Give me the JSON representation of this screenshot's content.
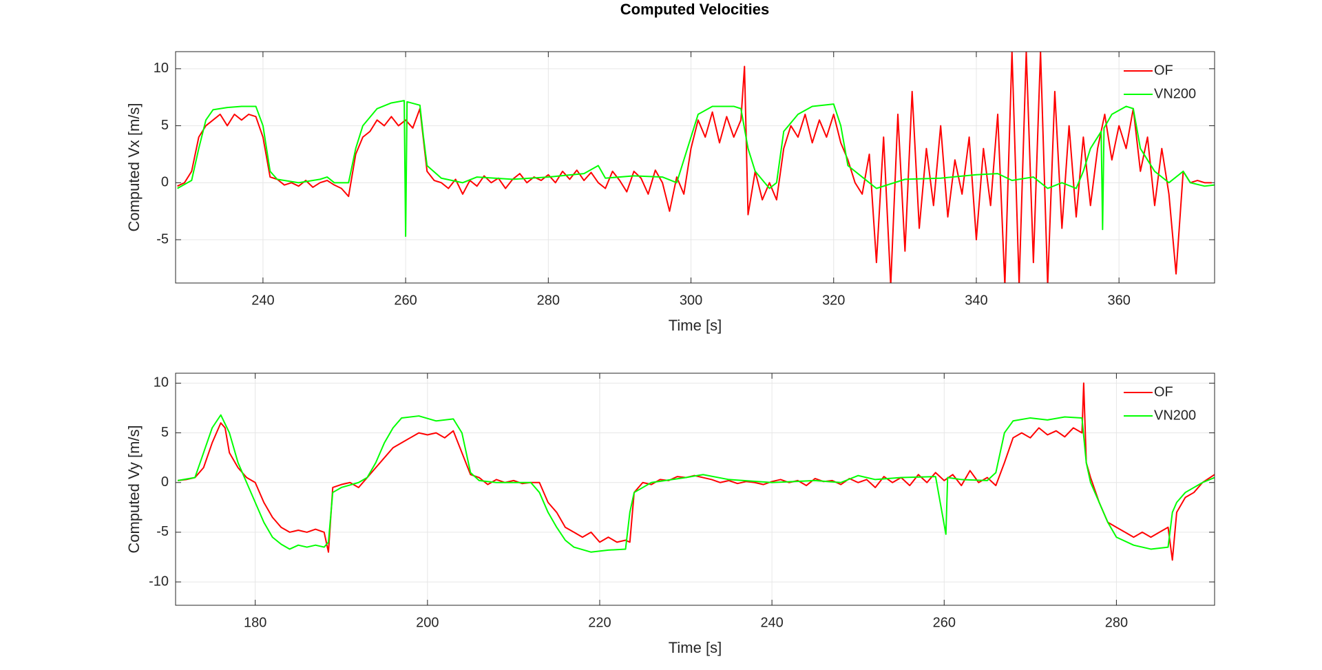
{
  "chart_data": [
    {
      "type": "line",
      "title": "Computed Velocities",
      "x_label": "Time [s]",
      "y_label": "Computed Vx [m/s]",
      "xlim": [
        227.75,
        373.4
      ],
      "ylim": [
        -8.8,
        11.5
      ],
      "xticks": [
        240,
        260,
        280,
        300,
        320,
        340,
        360
      ],
      "yticks": [
        -5,
        0,
        5,
        10
      ],
      "grid": true,
      "legend": "northeast",
      "series": [
        {
          "name": "OF",
          "color": "#ff0000",
          "x": [
            228,
            229,
            230,
            231,
            232,
            233,
            234,
            235,
            236,
            237,
            238,
            239,
            240,
            241,
            242,
            243,
            244,
            245,
            246,
            247,
            248,
            249,
            250,
            251,
            252,
            253,
            254,
            255,
            256,
            257,
            258,
            259,
            260,
            261,
            262,
            263,
            264,
            265,
            266,
            267,
            268,
            269,
            270,
            271,
            272,
            273,
            274,
            275,
            276,
            277,
            278,
            279,
            280,
            281,
            282,
            283,
            284,
            285,
            286,
            287,
            288,
            289,
            290,
            291,
            292,
            293,
            294,
            295,
            296,
            297,
            298,
            299,
            300,
            301,
            302,
            303,
            304,
            305,
            306,
            307,
            307.5,
            308,
            309,
            310,
            311,
            312,
            313,
            314,
            315,
            316,
            317,
            318,
            319,
            320,
            321,
            322,
            323,
            324,
            325,
            326,
            327,
            328,
            329,
            330,
            331,
            332,
            333,
            334,
            335,
            336,
            337,
            338,
            339,
            340,
            341,
            342,
            343,
            344,
            345,
            346,
            347,
            348,
            349,
            350,
            351,
            352,
            353,
            354,
            355,
            356,
            357,
            358,
            359,
            360,
            361,
            362,
            363,
            364,
            365,
            366,
            367,
            368,
            369,
            370,
            371,
            372,
            373
          ],
          "values": [
            -0.3,
            0,
            1,
            4,
            5,
            5.5,
            6,
            5,
            6,
            5.5,
            6,
            5.8,
            4,
            0.5,
            0.3,
            -0.2,
            0,
            -0.3,
            0.2,
            -0.4,
            0,
            0.2,
            -0.2,
            -0.5,
            -1.2,
            2.5,
            4,
            4.5,
            5.5,
            5,
            5.8,
            5,
            5.5,
            4.8,
            6.5,
            1,
            0.2,
            0,
            -0.5,
            0.3,
            -1,
            0.2,
            -0.3,
            0.6,
            0,
            0.4,
            -0.5,
            0.3,
            0.8,
            0,
            0.5,
            0.2,
            0.7,
            0,
            1,
            0.3,
            1.1,
            0.2,
            0.9,
            0,
            -0.5,
            1,
            0.2,
            -0.8,
            1,
            0.4,
            -1,
            1.1,
            0,
            -2.5,
            0.5,
            -1,
            3,
            5.5,
            4,
            6.2,
            3.5,
            5.8,
            4,
            5.5,
            10.2,
            -2.8,
            1,
            -1.5,
            0,
            -1.5,
            3,
            5,
            4,
            6,
            3.5,
            5.5,
            4,
            6,
            3.5,
            2,
            0,
            -1,
            2.5,
            -7,
            4,
            -9,
            6,
            -6,
            8,
            -4,
            3,
            -2,
            5,
            -3,
            2,
            -1,
            4,
            -5,
            3,
            -2,
            6,
            -9,
            11.5,
            -9,
            11.5,
            -7,
            11.5,
            -9,
            8,
            -4,
            5,
            -3,
            4,
            -2,
            3,
            6,
            2,
            5,
            3,
            6.5,
            1,
            4,
            -2,
            3,
            -1,
            -8,
            1,
            0,
            0.2,
            0,
            0
          ]
        },
        {
          "name": "VN200",
          "color": "#00ff00",
          "x": [
            228,
            230,
            231,
            232,
            233,
            235,
            237,
            239,
            240,
            241,
            242,
            245,
            248,
            249,
            250,
            252,
            253,
            254,
            256,
            258,
            259.8,
            260,
            260.2,
            262,
            262.5,
            263,
            265,
            268,
            270,
            275,
            280,
            285,
            287,
            288,
            292,
            296,
            298,
            300,
            301,
            303,
            306,
            307,
            308,
            309,
            311,
            312,
            313,
            315,
            317,
            320,
            321,
            322,
            324,
            326,
            330,
            335,
            340,
            343,
            345,
            348,
            350,
            352,
            354,
            355,
            356,
            357.5,
            357.7,
            357.9,
            359,
            361,
            362,
            363,
            365,
            367,
            369,
            370,
            372,
            373.4
          ],
          "values": [
            -0.5,
            0.2,
            3,
            5.5,
            6.4,
            6.6,
            6.7,
            6.7,
            5,
            1,
            0.3,
            0,
            0.3,
            0.5,
            0,
            0,
            3,
            5,
            6.5,
            7,
            7.2,
            -4.7,
            7.1,
            6.8,
            4,
            1.5,
            0.4,
            0,
            0.5,
            0.3,
            0.5,
            0.8,
            1.5,
            0.4,
            0.6,
            0.5,
            0,
            4,
            6,
            6.7,
            6.7,
            6.5,
            3,
            1,
            -0.5,
            0,
            4.5,
            6,
            6.7,
            6.9,
            5,
            1.5,
            0.5,
            -0.5,
            0.3,
            0.4,
            0.7,
            0.8,
            0.2,
            0.5,
            -0.5,
            0,
            -0.5,
            1,
            3,
            4.5,
            -4.1,
            4.8,
            6,
            6.7,
            6.5,
            3,
            1,
            0,
            1,
            0,
            -0.3,
            -0.2
          ]
        }
      ]
    },
    {
      "type": "line",
      "x_label": "Time [s]",
      "y_label": "Computed Vy [m/s]",
      "xlim": [
        170.75,
        291.4
      ],
      "ylim": [
        -12.35,
        11
      ],
      "xticks": [
        180,
        200,
        220,
        240,
        260,
        280
      ],
      "yticks": [
        -10,
        -5,
        0,
        5,
        10
      ],
      "grid": true,
      "legend": "northeast",
      "series": [
        {
          "name": "OF",
          "color": "#ff0000",
          "x": [
            171,
            172,
            173,
            174,
            175,
            176,
            176.5,
            177,
            178,
            179,
            180,
            181,
            182,
            183,
            184,
            185,
            186,
            187,
            188,
            188.5,
            189,
            190,
            191,
            192,
            193,
            194,
            195,
            196,
            197,
            198,
            199,
            200,
            201,
            202,
            203,
            204,
            205,
            206,
            207,
            208,
            209,
            210,
            211,
            212,
            213,
            214,
            215,
            216,
            217,
            218,
            219,
            220,
            221,
            222,
            223,
            223.5,
            224,
            225,
            226,
            227,
            228,
            229,
            230,
            231,
            232,
            233,
            234,
            235,
            236,
            237,
            238,
            239,
            240,
            241,
            242,
            243,
            244,
            245,
            246,
            247,
            248,
            249,
            250,
            251,
            252,
            253,
            254,
            255,
            256,
            257,
            258,
            259,
            260,
            261,
            262,
            263,
            264,
            265,
            266,
            267,
            268,
            269,
            270,
            271,
            272,
            273,
            274,
            275,
            276,
            276.2,
            276.5,
            277,
            278,
            279,
            280,
            281,
            282,
            283,
            284,
            285,
            286,
            286.5,
            287,
            288,
            289,
            290,
            291.4
          ],
          "values": [
            0.2,
            0.3,
            0.5,
            1.5,
            4,
            6,
            5.5,
            3,
            1.5,
            0.5,
            0,
            -2,
            -3.5,
            -4.5,
            -5,
            -4.8,
            -5,
            -4.7,
            -5,
            -7,
            -0.5,
            -0.2,
            0,
            -0.5,
            0.5,
            1.5,
            2.5,
            3.5,
            4,
            4.5,
            5,
            4.8,
            5,
            4.5,
            5.2,
            3,
            0.8,
            0.5,
            -0.2,
            0.3,
            0,
            0.2,
            -0.1,
            0,
            0,
            -2,
            -3,
            -4.5,
            -5,
            -5.5,
            -5,
            -6,
            -5.5,
            -6,
            -5.8,
            -6,
            -1,
            0,
            -0.2,
            0.3,
            0.2,
            0.6,
            0.5,
            0.7,
            0.5,
            0.3,
            0,
            0.2,
            -0.1,
            0.1,
            0,
            -0.2,
            0.1,
            0.3,
            0,
            0.2,
            -0.3,
            0.4,
            0.1,
            0.2,
            -0.2,
            0.4,
            0,
            0.3,
            -0.5,
            0.6,
            0,
            0.5,
            -0.3,
            0.8,
            0,
            1,
            0.2,
            0.8,
            -0.3,
            1.2,
            0,
            0.5,
            -0.3,
            2,
            4.5,
            5,
            4.5,
            5.5,
            4.8,
            5.2,
            4.6,
            5.5,
            5,
            10,
            2,
            0.5,
            -2,
            -4,
            -4.5,
            -5,
            -5.5,
            -5,
            -5.5,
            -5,
            -4.5,
            -7.8,
            -3,
            -1.5,
            -1,
            0,
            0.8
          ]
        },
        {
          "name": "VN200",
          "color": "#00ff00",
          "x": [
            171,
            173,
            174,
            175,
            176,
            177,
            178,
            179,
            180,
            181,
            182,
            183,
            184,
            185,
            186,
            187,
            188,
            188.5,
            189,
            190,
            192,
            193,
            194,
            195,
            196,
            197,
            199,
            201,
            203,
            204,
            205,
            206,
            208,
            210,
            212,
            213,
            214,
            215,
            216,
            217,
            219,
            221,
            223,
            223.5,
            224,
            226,
            230,
            232,
            235,
            240,
            245,
            248,
            250,
            252,
            255,
            259,
            260.2,
            260.4,
            262,
            265,
            266,
            267,
            268,
            270,
            272,
            274,
            276,
            276.5,
            277,
            278,
            279,
            280,
            282,
            284,
            286,
            286.5,
            287,
            288,
            290,
            291.4
          ],
          "values": [
            0.2,
            0.5,
            3,
            5.5,
            6.8,
            5,
            2,
            0,
            -2,
            -4,
            -5.5,
            -6.2,
            -6.7,
            -6.3,
            -6.5,
            -6.3,
            -6.5,
            -6,
            -1,
            -0.5,
            0,
            0.5,
            2,
            4,
            5.5,
            6.5,
            6.7,
            6.2,
            6.4,
            5,
            1,
            0.2,
            0,
            0,
            0,
            -1,
            -3,
            -4.5,
            -5.8,
            -6.5,
            -7,
            -6.8,
            -6.7,
            -3,
            -1,
            0,
            0.5,
            0.8,
            0.3,
            0,
            0.2,
            0,
            0.7,
            0.3,
            0.5,
            0.6,
            -5.2,
            0.5,
            0.3,
            0.2,
            1,
            5,
            6.2,
            6.5,
            6.3,
            6.6,
            6.5,
            2,
            0,
            -2,
            -4,
            -5.5,
            -6.3,
            -6.7,
            -6.5,
            -3,
            -2,
            -1,
            0,
            0.5
          ]
        }
      ]
    }
  ]
}
